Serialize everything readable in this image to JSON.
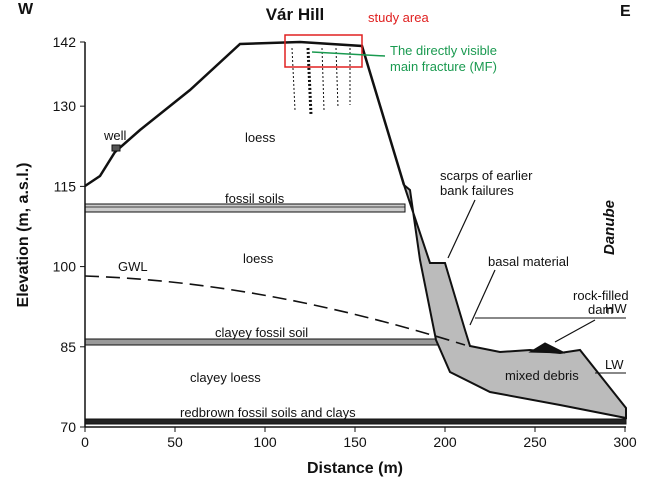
{
  "header": {
    "west": "W",
    "east": "E",
    "hill": "Vár Hill",
    "study_area": "study area"
  },
  "axes": {
    "x_label": "Distance (m)",
    "y_label": "Elevation (m, a.s.l.)",
    "xlim": [
      0,
      300
    ],
    "ylim": [
      70,
      142
    ],
    "xticks": [
      0,
      50,
      100,
      150,
      200,
      250,
      300
    ],
    "yticks": [
      70,
      85,
      100,
      115,
      130,
      142
    ]
  },
  "labels": {
    "fracture": [
      "The directly visible",
      "main fracture (MF)"
    ],
    "well": "well",
    "loess_upper": "loess",
    "fossil_soils": "fossil soils",
    "loess_lower": "loess",
    "gwl": "GWL",
    "clayey_fossil_soil": "clayey fossil soil",
    "clayey_loess": "clayey loess",
    "redbrown": "redbrown fossil soils and clays",
    "scarps": [
      "scarps of earlier",
      "bank failures"
    ],
    "basal": "basal material",
    "dam": [
      "rock-filled",
      "dam"
    ],
    "hw": "HW",
    "lw": "LW",
    "debris": "mixed debris",
    "river": "Danube"
  }
}
